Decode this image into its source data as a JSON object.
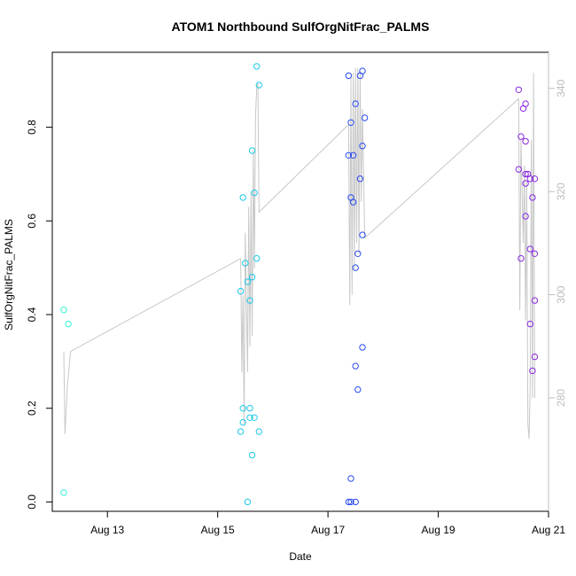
{
  "chart_data": {
    "type": "scatter",
    "title": "ATOM1 Northbound SulfOrgNitFrac_PALMS",
    "xlabel": "Date",
    "ylabel": "SulfOrgNitFrac_PALMS",
    "xlim": [
      "2016-08-12",
      "2016-08-21"
    ],
    "ylim": [
      -0.02,
      0.96
    ],
    "y_right_lim": [
      258,
      347
    ],
    "x_ticks": [
      {
        "value": "2016-08-13",
        "label": "Aug 13"
      },
      {
        "value": "2016-08-15",
        "label": "Aug 15"
      },
      {
        "value": "2016-08-17",
        "label": "Aug 17"
      },
      {
        "value": "2016-08-19",
        "label": "Aug 19"
      },
      {
        "value": "2016-08-21",
        "label": "Aug 21"
      }
    ],
    "y_ticks": [
      "0.0",
      "0.2",
      "0.4",
      "0.6",
      "0.8"
    ],
    "y_right_ticks": [
      "280",
      "300",
      "320",
      "340"
    ],
    "grid": false,
    "series": [
      {
        "color": "#33f5d8",
        "points": [
          [
            "2016-08-12 05:00",
            0.41
          ],
          [
            "2016-08-12 07:00",
            0.38
          ],
          [
            "2016-08-12 05:00",
            0.02
          ]
        ]
      },
      {
        "color": "#1ec8e8",
        "points": [
          [
            "2016-08-15 11:00",
            0.65
          ],
          [
            "2016-08-15 12:00",
            0.51
          ],
          [
            "2016-08-15 10:00",
            0.45
          ],
          [
            "2016-08-15 13:00",
            0.47
          ],
          [
            "2016-08-15 15:00",
            0.48
          ],
          [
            "2016-08-15 14:00",
            0.43
          ],
          [
            "2016-08-15 15:00",
            0.75
          ],
          [
            "2016-08-15 16:00",
            0.66
          ],
          [
            "2016-08-15 17:00",
            0.93
          ],
          [
            "2016-08-15 18:00",
            0.89
          ],
          [
            "2016-08-15 17:00",
            0.52
          ],
          [
            "2016-08-15 11:00",
            0.2
          ],
          [
            "2016-08-15 14:00",
            0.2
          ],
          [
            "2016-08-15 11:00",
            0.17
          ],
          [
            "2016-08-15 14:00",
            0.18
          ],
          [
            "2016-08-15 16:00",
            0.18
          ],
          [
            "2016-08-15 10:00",
            0.15
          ],
          [
            "2016-08-15 18:00",
            0.15
          ],
          [
            "2016-08-15 15:00",
            0.1
          ],
          [
            "2016-08-15 13:00",
            0.0
          ]
        ]
      },
      {
        "color": "#2a4cf0",
        "points": [
          [
            "2016-08-17 09:00",
            0.91
          ],
          [
            "2016-08-17 14:00",
            0.91
          ],
          [
            "2016-08-17 15:00",
            0.92
          ],
          [
            "2016-08-17 12:00",
            0.85
          ],
          [
            "2016-08-17 10:00",
            0.81
          ],
          [
            "2016-08-17 16:00",
            0.82
          ],
          [
            "2016-08-17 15:00",
            0.76
          ],
          [
            "2016-08-17 09:00",
            0.74
          ],
          [
            "2016-08-17 11:00",
            0.74
          ],
          [
            "2016-08-17 14:00",
            0.69
          ],
          [
            "2016-08-17 10:00",
            0.65
          ],
          [
            "2016-08-17 11:00",
            0.64
          ],
          [
            "2016-08-17 15:00",
            0.57
          ],
          [
            "2016-08-17 13:00",
            0.53
          ],
          [
            "2016-08-17 12:00",
            0.5
          ],
          [
            "2016-08-17 15:00",
            0.33
          ],
          [
            "2016-08-17 12:00",
            0.29
          ],
          [
            "2016-08-17 13:00",
            0.24
          ],
          [
            "2016-08-17 10:00",
            0.05
          ],
          [
            "2016-08-17 09:00",
            0.0
          ],
          [
            "2016-08-17 10:00",
            0.0
          ],
          [
            "2016-08-17 12:00",
            0.0
          ]
        ]
      },
      {
        "color": "#8a2be2",
        "points": [
          [
            "2016-08-20 11:00",
            0.88
          ],
          [
            "2016-08-20 14:00",
            0.85
          ],
          [
            "2016-08-20 13:00",
            0.84
          ],
          [
            "2016-08-20 12:00",
            0.78
          ],
          [
            "2016-08-20 14:00",
            0.77
          ],
          [
            "2016-08-20 11:00",
            0.71
          ],
          [
            "2016-08-20 14:00",
            0.7
          ],
          [
            "2016-08-20 15:00",
            0.7
          ],
          [
            "2016-08-20 16:00",
            0.69
          ],
          [
            "2016-08-20 14:00",
            0.68
          ],
          [
            "2016-08-20 18:00",
            0.69
          ],
          [
            "2016-08-20 17:00",
            0.65
          ],
          [
            "2016-08-20 14:00",
            0.61
          ],
          [
            "2016-08-20 16:00",
            0.54
          ],
          [
            "2016-08-20 18:00",
            0.53
          ],
          [
            "2016-08-20 12:00",
            0.52
          ],
          [
            "2016-08-20 18:00",
            0.43
          ],
          [
            "2016-08-20 16:00",
            0.38
          ],
          [
            "2016-08-20 18:00",
            0.31
          ],
          [
            "2016-08-20 17:00",
            0.28
          ]
        ]
      }
    ],
    "secondary_trace": {
      "axis": "right",
      "color": "#c8c8c8",
      "points": [
        [
          "2016-08-12 05:00",
          289
        ],
        [
          "2016-08-12 05:30",
          273
        ],
        [
          "2016-08-12 06:30",
          282
        ],
        [
          "2016-08-12 08:00",
          289
        ],
        [
          "2016-08-15 10:00",
          307
        ],
        [
          "2016-08-15 10:30",
          285
        ],
        [
          "2016-08-15 11:00",
          300
        ],
        [
          "2016-08-15 11:30",
          275
        ],
        [
          "2016-08-15 12:00",
          312
        ],
        [
          "2016-08-15 13:00",
          285
        ],
        [
          "2016-08-15 13:30",
          317
        ],
        [
          "2016-08-15 14:00",
          290
        ],
        [
          "2016-08-15 14:30",
          320
        ],
        [
          "2016-08-15 15:00",
          292
        ],
        [
          "2016-08-15 15:30",
          328
        ],
        [
          "2016-08-15 16:00",
          305
        ],
        [
          "2016-08-15 16:30",
          335
        ],
        [
          "2016-08-15 17:00",
          340
        ],
        [
          "2016-08-15 17:30",
          341
        ],
        [
          "2016-08-15 18:00",
          316
        ],
        [
          "2016-08-17 09:00",
          333
        ],
        [
          "2016-08-17 09:30",
          298
        ],
        [
          "2016-08-17 10:00",
          342
        ],
        [
          "2016-08-17 10:30",
          300
        ],
        [
          "2016-08-17 11:00",
          343
        ],
        [
          "2016-08-17 11:30",
          305
        ],
        [
          "2016-08-17 12:00",
          344
        ],
        [
          "2016-08-17 12:30",
          310
        ],
        [
          "2016-08-17 13:00",
          344
        ],
        [
          "2016-08-17 13:30",
          308
        ],
        [
          "2016-08-17 14:00",
          343
        ],
        [
          "2016-08-17 14:30",
          318
        ],
        [
          "2016-08-17 15:00",
          336
        ],
        [
          "2016-08-17 16:00",
          311
        ],
        [
          "2016-08-20 11:00",
          338
        ],
        [
          "2016-08-20 11:30",
          297
        ],
        [
          "2016-08-20 12:00",
          330
        ],
        [
          "2016-08-20 13:00",
          310
        ],
        [
          "2016-08-20 13:30",
          325
        ],
        [
          "2016-08-20 14:00",
          295
        ],
        [
          "2016-08-20 14:30",
          322
        ],
        [
          "2016-08-20 15:00",
          275
        ],
        [
          "2016-08-20 15:30",
          272
        ],
        [
          "2016-08-20 16:00",
          282
        ],
        [
          "2016-08-20 16:30",
          330
        ],
        [
          "2016-08-20 17:00",
          280
        ],
        [
          "2016-08-20 17:30",
          343
        ],
        [
          "2016-08-20 18:00",
          280
        ]
      ]
    }
  }
}
